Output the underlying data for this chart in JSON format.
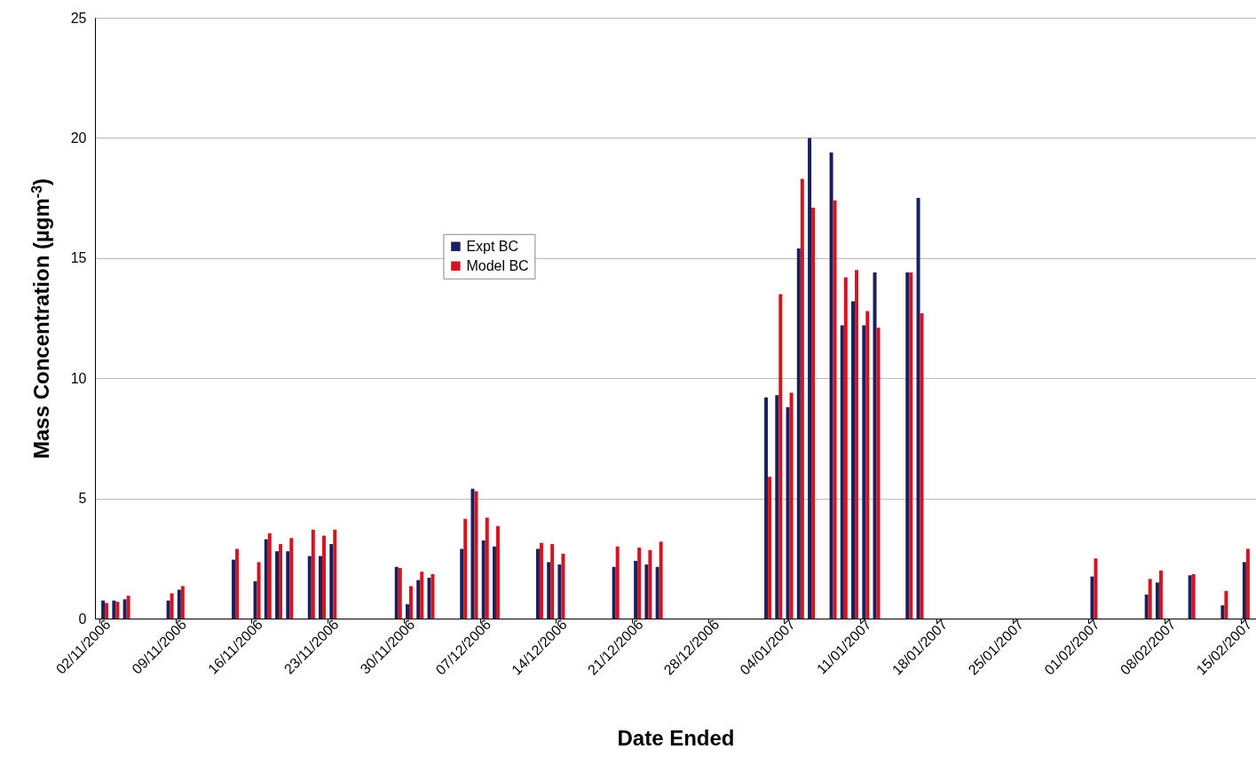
{
  "chart_data": {
    "type": "bar",
    "xlabel": "Date Ended",
    "ylabel": "Mass Concentration (µgm$^{-3}$)",
    "x": [
      "2006-11-02T12:00",
      "2006-11-03T12:00",
      "2006-11-04T12:00",
      "2006-11-08T12:00",
      "2006-11-09T12:00",
      "2006-11-14T12:00",
      "2006-11-16T12:00",
      "2006-11-17T12:00",
      "2006-11-18T12:00",
      "2006-11-19T12:00",
      "2006-11-21T12:00",
      "2006-11-22T12:00",
      "2006-11-23T12:00",
      "2006-11-29T12:00",
      "2006-11-30T12:00",
      "2006-12-01T12:00",
      "2006-12-02T12:00",
      "2006-12-05T12:00",
      "2006-12-06T12:00",
      "2006-12-07T12:00",
      "2006-12-08T12:00",
      "2006-12-12T12:00",
      "2006-12-13T12:00",
      "2006-12-14T12:00",
      "2006-12-19T12:00",
      "2006-12-21T12:00",
      "2006-12-22T12:00",
      "2006-12-23T12:00",
      "2007-01-02T12:00",
      "2007-01-03T12:00",
      "2007-01-04T12:00",
      "2007-01-05T12:00",
      "2007-01-06T12:00",
      "2007-01-08T12:00",
      "2007-01-09T12:00",
      "2007-01-10T12:00",
      "2007-01-11T12:00",
      "2007-01-12T12:00",
      "2007-01-15T12:00",
      "2007-01-16T12:00",
      "2007-02-01T12:00",
      "2007-02-06T12:00",
      "2007-02-07T12:00",
      "2007-02-10T12:00",
      "2007-02-13T12:00",
      "2007-02-15T12:00"
    ],
    "series": [
      {
        "name": "Expt BC",
        "color": "#1a1f5e",
        "values": [
          0.75,
          0.75,
          0.8,
          0.75,
          1.2,
          2.45,
          1.55,
          3.3,
          2.8,
          2.8,
          2.6,
          2.6,
          3.1,
          2.15,
          0.6,
          1.6,
          1.7,
          2.9,
          5.4,
          3.25,
          3.0,
          2.9,
          2.35,
          2.25,
          2.15,
          2.4,
          2.25,
          2.15,
          9.2,
          9.3,
          8.8,
          15.4,
          20.0,
          19.4,
          12.2,
          13.2,
          12.2,
          14.4,
          14.4,
          17.5,
          1.75,
          1.0,
          1.5,
          1.8,
          0.55,
          2.35
        ]
      },
      {
        "name": "Model BC",
        "color": "#d4141e",
        "values": [
          0.65,
          0.7,
          0.95,
          1.05,
          1.35,
          2.9,
          2.35,
          3.55,
          3.1,
          3.35,
          3.7,
          3.45,
          3.7,
          2.1,
          1.35,
          1.95,
          1.85,
          4.15,
          5.3,
          4.2,
          3.85,
          3.15,
          3.1,
          2.7,
          3.0,
          2.95,
          2.85,
          3.2,
          5.9,
          13.5,
          9.4,
          18.3,
          17.1,
          17.4,
          14.2,
          14.5,
          12.8,
          12.1,
          14.4,
          12.7,
          2.5,
          1.65,
          2.0,
          1.85,
          1.15,
          2.9
        ]
      }
    ],
    "xlim": [
      "2006-11-02",
      "2007-02-16"
    ],
    "xticks": [
      {
        "value": "2006-11-02",
        "label": "02/11/2006"
      },
      {
        "value": "2006-11-09",
        "label": "09/11/2006"
      },
      {
        "value": "2006-11-16",
        "label": "16/11/2006"
      },
      {
        "value": "2006-11-23",
        "label": "23/11/2006"
      },
      {
        "value": "2006-11-30",
        "label": "30/11/2006"
      },
      {
        "value": "2006-12-07",
        "label": "07/12/2006"
      },
      {
        "value": "2006-12-14",
        "label": "14/12/2006"
      },
      {
        "value": "2006-12-21",
        "label": "21/12/2006"
      },
      {
        "value": "2006-12-28",
        "label": "28/12/2006"
      },
      {
        "value": "2007-01-04",
        "label": "04/01/2007"
      },
      {
        "value": "2007-01-11",
        "label": "11/01/2007"
      },
      {
        "value": "2007-01-18",
        "label": "18/01/2007"
      },
      {
        "value": "2007-01-25",
        "label": "25/01/2007"
      },
      {
        "value": "2007-02-01",
        "label": "01/02/2007"
      },
      {
        "value": "2007-02-08",
        "label": "08/02/2007"
      },
      {
        "value": "2007-02-15",
        "label": "15/02/2007"
      }
    ],
    "ylim": [
      0,
      25
    ],
    "yticks": [
      0,
      5,
      10,
      15,
      20,
      25
    ],
    "grid": "y",
    "legend": "top left"
  }
}
